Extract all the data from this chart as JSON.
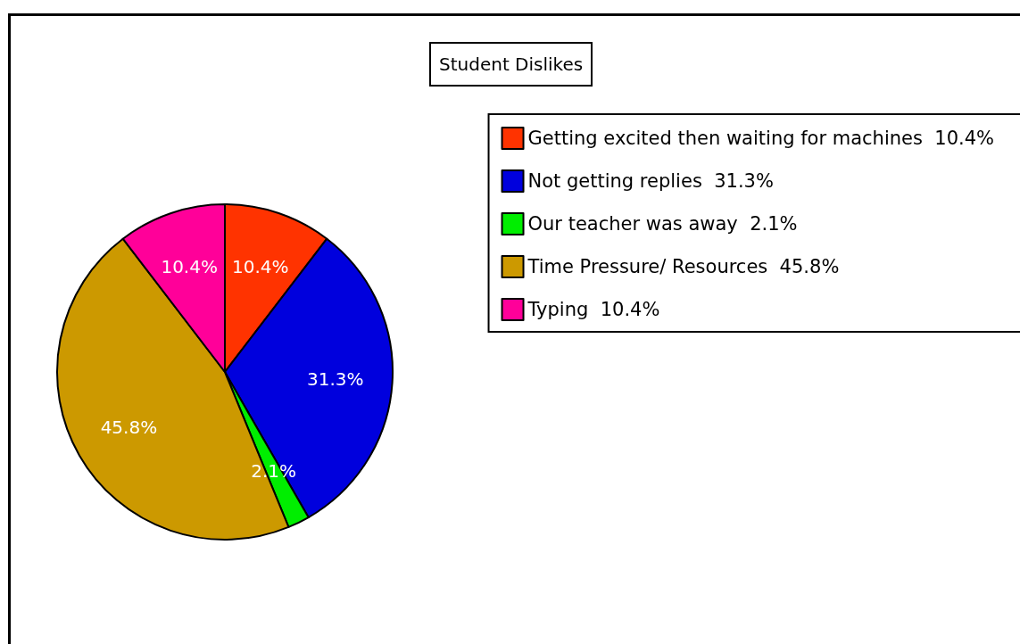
{
  "chart_data": {
    "type": "pie",
    "title": "Student Dislikes",
    "categories": [
      "Getting excited then waiting for machines",
      "Not getting replies",
      "Our teacher was away",
      "Time Pressure/ Resources",
      "Typing"
    ],
    "values": [
      10.4,
      31.3,
      2.1,
      45.8,
      10.4
    ],
    "colors": [
      "#ff3300",
      "#0000dd",
      "#00ee00",
      "#cc9900",
      "#ff0099"
    ],
    "value_labels": [
      "10.4%",
      "31.3%",
      "2.1%",
      "45.8%",
      "10.4%"
    ],
    "legend": "top right"
  }
}
